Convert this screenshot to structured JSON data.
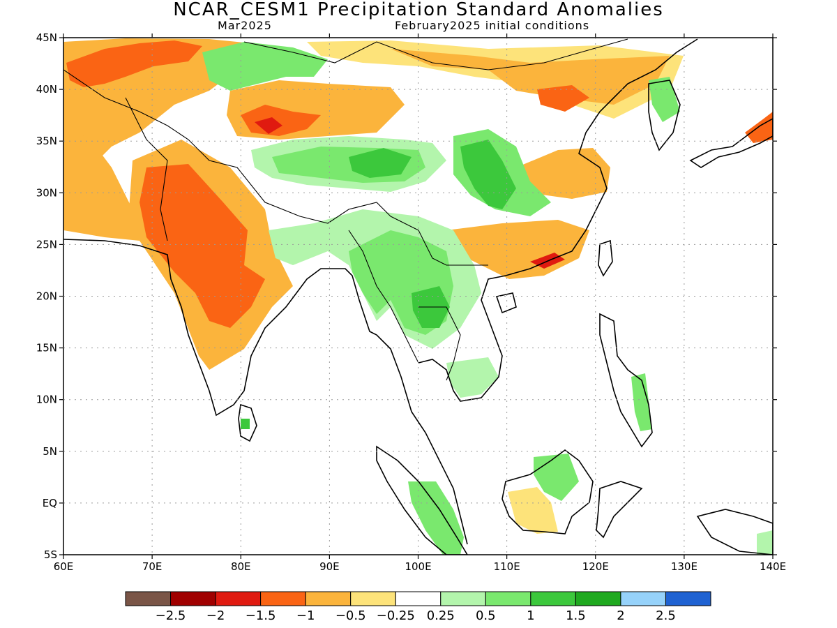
{
  "title": "NCAR_CESM1 Precipitation Standard Anomalies",
  "subtitle_left": "Mar2025",
  "subtitle_right": "February2025 initial conditions",
  "lat_labels": [
    "45N",
    "40N",
    "35N",
    "30N",
    "25N",
    "20N",
    "15N",
    "10N",
    "5N",
    "EQ",
    "5S"
  ],
  "lon_labels": [
    "60E",
    "70E",
    "80E",
    "90E",
    "100E",
    "110E",
    "120E",
    "130E",
    "140E"
  ],
  "colorbar": {
    "colors": [
      "#7a5547",
      "#a00000",
      "#e01a10",
      "#fa6414",
      "#fbb43c",
      "#fde37a",
      "#ffffff",
      "#b3f5ac",
      "#7ae86e",
      "#3cc83c",
      "#1fa91f",
      "#96d2fa",
      "#1f62d2"
    ],
    "labels": [
      "−2.5",
      "−2",
      "−1.5",
      "−1",
      "−0.5",
      "−0.25",
      "0.25",
      "0.5",
      "1",
      "1.5",
      "2",
      "2.5"
    ]
  },
  "palette": {
    "dry_light": "#fde37a",
    "dry_mid": "#fbb43c",
    "dry_strong": "#fa6414",
    "dry_extreme": "#e01a10",
    "wet_light": "#b3f5ac",
    "wet_mid": "#7ae86e",
    "wet_strong": "#3cc83c"
  }
}
